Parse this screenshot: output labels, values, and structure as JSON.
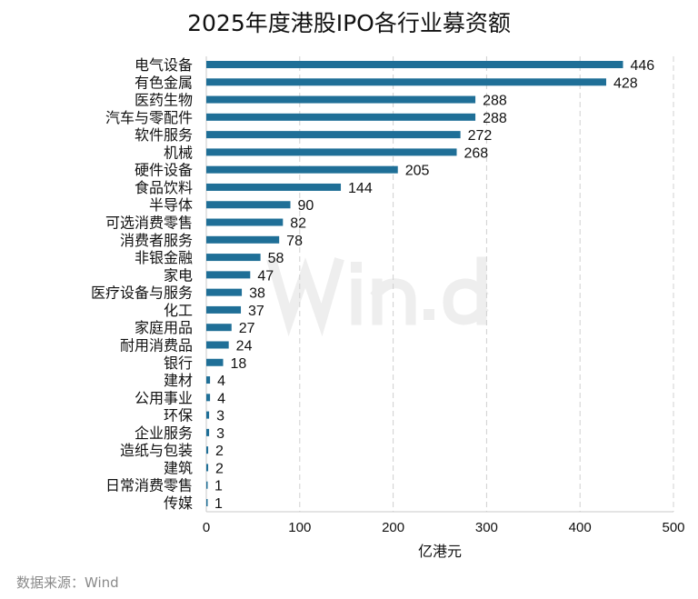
{
  "chart_data": {
    "type": "bar",
    "orientation": "horizontal",
    "title": "2025年度港股IPO各行业募资额",
    "xlabel": "亿港元",
    "ylabel": "",
    "xlim": [
      0,
      500
    ],
    "xticks": [
      0,
      100,
      200,
      300,
      400,
      500
    ],
    "grid": "vertical dashed",
    "bar_color": "#1f6f97",
    "categories": [
      "电气设备",
      "有色金属",
      "医药生物",
      "汽车与零配件",
      "软件服务",
      "机械",
      "硬件设备",
      "食品饮料",
      "半导体",
      "可选消费零售",
      "消费者服务",
      "非银金融",
      "家电",
      "医疗设备与服务",
      "化工",
      "家庭用品",
      "耐用消费品",
      "银行",
      "建材",
      "公用事业",
      "环保",
      "企业服务",
      "造纸与包装",
      "建筑",
      "日常消费零售",
      "传媒"
    ],
    "values": [
      446,
      428,
      288,
      288,
      272,
      268,
      205,
      144,
      90,
      82,
      78,
      58,
      47,
      38,
      37,
      27,
      24,
      18,
      4,
      4,
      3,
      3,
      2,
      2,
      1,
      1
    ]
  },
  "watermark": "Win.d",
  "source": "数据来源：Wind"
}
